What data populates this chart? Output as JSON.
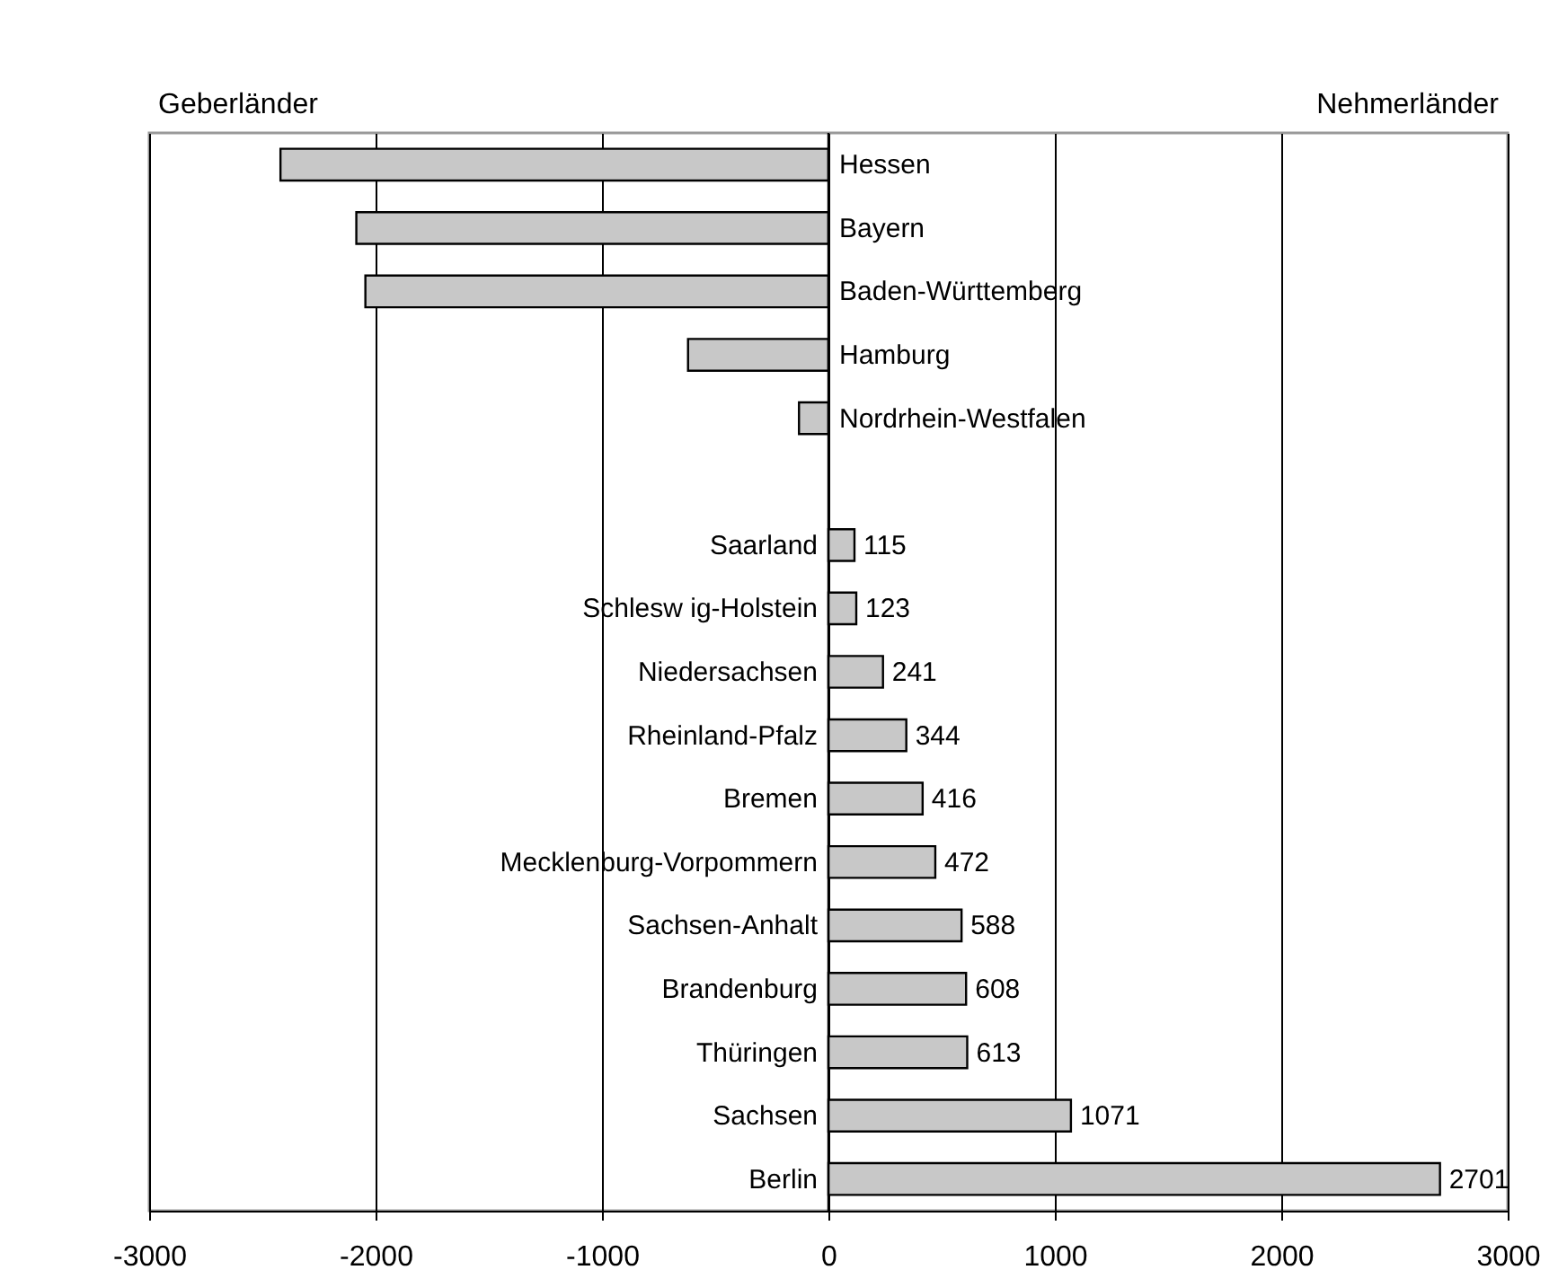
{
  "chart_data": {
    "type": "bar",
    "orientation": "horizontal",
    "categories": [
      "Hessen",
      "Bayern",
      "Baden-Württemberg",
      "Hamburg",
      "Nordrhein-Westfalen",
      null,
      "Saarland",
      "Schlesw ig-Holstein",
      "Niedersachsen",
      "Rheinland-Pfalz",
      "Bremen",
      "Mecklenburg-Vorpommern",
      "Sachsen-Anhalt",
      "Brandenburg",
      "Thüringen",
      "Sachsen",
      "Berlin"
    ],
    "values": [
      -2420,
      -2085,
      -2045,
      -620,
      -130,
      null,
      115,
      123,
      241,
      344,
      416,
      472,
      588,
      608,
      613,
      1071,
      2701
    ],
    "value_labels": [
      null,
      null,
      null,
      null,
      null,
      null,
      "115",
      "123",
      "241",
      "344",
      "416",
      "472",
      "588",
      "608",
      "613",
      "1071",
      "2701"
    ],
    "color": "#c8c8c8",
    "xlim": [
      -3000,
      3000
    ],
    "xticks": [
      -3000,
      -2000,
      -1000,
      0,
      1000,
      2000,
      3000
    ],
    "grid": "x",
    "annotations": [
      "Geberländer",
      "Nehmerländer"
    ]
  }
}
